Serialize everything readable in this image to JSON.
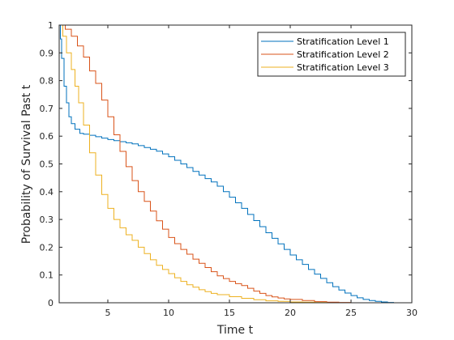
{
  "chart_data": {
    "type": "line",
    "title": "",
    "xlabel": "Time t",
    "ylabel": "Probability of Survival Past t",
    "xlim": [
      1,
      30
    ],
    "ylim": [
      0,
      1
    ],
    "xticks": [
      5,
      10,
      15,
      20,
      25,
      30
    ],
    "yticks": [
      0,
      0.1,
      0.2,
      0.3,
      0.4,
      0.5,
      0.6,
      0.7,
      0.8,
      0.9,
      1
    ],
    "grid": false,
    "legend_position": "top-right",
    "series": [
      {
        "name": "Stratification Level 1",
        "color": "#0072BD",
        "x": [
          1,
          1.1,
          1.2,
          1.4,
          1.6,
          1.8,
          2,
          2.3,
          2.7,
          3,
          3.5,
          4,
          4.5,
          5,
          5.5,
          6,
          6.5,
          7,
          7.5,
          8,
          8.5,
          9,
          9.5,
          10,
          10.5,
          11,
          11.5,
          12,
          12.5,
          13,
          13.5,
          14,
          14.5,
          15,
          15.5,
          16,
          16.5,
          17,
          17.5,
          18,
          18.5,
          19,
          19.5,
          20,
          20.5,
          21,
          21.5,
          22,
          22.5,
          23,
          23.5,
          24,
          24.5,
          25,
          25.5,
          26,
          26.5,
          27,
          27.5,
          28,
          28.5,
          29
        ],
        "y": [
          1,
          0.95,
          0.88,
          0.78,
          0.72,
          0.67,
          0.645,
          0.625,
          0.61,
          0.607,
          0.603,
          0.598,
          0.593,
          0.588,
          0.584,
          0.58,
          0.576,
          0.572,
          0.566,
          0.559,
          0.553,
          0.546,
          0.536,
          0.526,
          0.513,
          0.5,
          0.487,
          0.473,
          0.46,
          0.447,
          0.435,
          0.42,
          0.4,
          0.38,
          0.36,
          0.34,
          0.318,
          0.296,
          0.274,
          0.252,
          0.232,
          0.212,
          0.192,
          0.172,
          0.155,
          0.138,
          0.12,
          0.103,
          0.088,
          0.072,
          0.058,
          0.046,
          0.035,
          0.026,
          0.018,
          0.012,
          0.008,
          0.005,
          0.003,
          0.001,
          0.0,
          0.0
        ]
      },
      {
        "name": "Stratification Level 2",
        "color": "#D95319",
        "x": [
          1,
          1.5,
          2,
          2.5,
          3,
          3.5,
          4,
          4.5,
          5,
          5.5,
          6,
          6.5,
          7,
          7.5,
          8,
          8.5,
          9,
          9.5,
          10,
          10.5,
          11,
          11.5,
          12,
          12.5,
          13,
          13.5,
          14,
          14.5,
          15,
          15.5,
          16,
          16.5,
          17,
          17.5,
          18,
          18.5,
          19,
          19.5,
          20,
          21,
          22,
          23,
          24,
          25
        ],
        "y": [
          1,
          0.985,
          0.96,
          0.925,
          0.885,
          0.835,
          0.79,
          0.73,
          0.67,
          0.605,
          0.545,
          0.49,
          0.44,
          0.4,
          0.365,
          0.33,
          0.295,
          0.265,
          0.235,
          0.213,
          0.192,
          0.175,
          0.157,
          0.142,
          0.127,
          0.112,
          0.097,
          0.087,
          0.077,
          0.069,
          0.062,
          0.052,
          0.042,
          0.034,
          0.026,
          0.021,
          0.017,
          0.014,
          0.012,
          0.008,
          0.004,
          0.002,
          0.001,
          0.0
        ]
      },
      {
        "name": "Stratification Level 3",
        "color": "#EDB120",
        "x": [
          1,
          1.3,
          1.6,
          2,
          2.3,
          2.6,
          3,
          3.5,
          4,
          4.5,
          5,
          5.5,
          6,
          6.5,
          7,
          7.5,
          8,
          8.5,
          9,
          9.5,
          10,
          10.5,
          11,
          11.5,
          12,
          12.5,
          13,
          13.5,
          14,
          15,
          16,
          17,
          18,
          19,
          20,
          21,
          22,
          23
        ],
        "y": [
          1,
          0.96,
          0.9,
          0.84,
          0.78,
          0.72,
          0.64,
          0.54,
          0.46,
          0.39,
          0.34,
          0.3,
          0.27,
          0.245,
          0.225,
          0.2,
          0.177,
          0.155,
          0.135,
          0.12,
          0.105,
          0.09,
          0.077,
          0.065,
          0.056,
          0.047,
          0.04,
          0.034,
          0.029,
          0.022,
          0.016,
          0.011,
          0.007,
          0.005,
          0.003,
          0.002,
          0.001,
          0.0
        ]
      }
    ]
  }
}
